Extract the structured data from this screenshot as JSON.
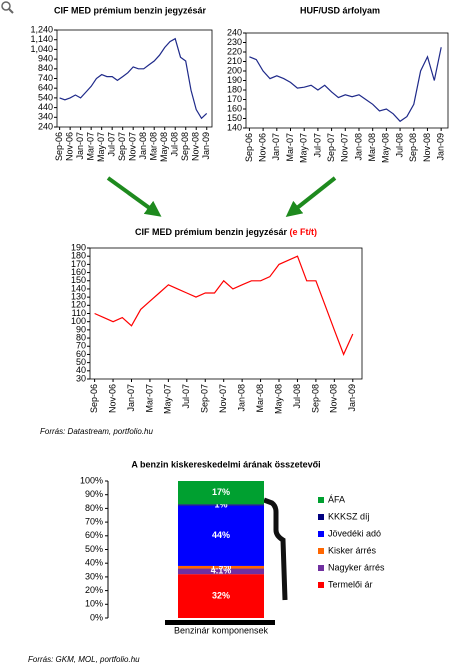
{
  "chart_data": [
    {
      "type": "line",
      "title": "CIF MED prémium benzin jegyzésár",
      "categories": [
        "Sep-06",
        null,
        "Nov-06",
        null,
        "Jan-07",
        null,
        "Mar-07",
        null,
        "May-07",
        null,
        "Jul-07",
        null,
        "Sep-07",
        null,
        "Nov-07",
        null,
        "Jan-08",
        null,
        "Mar-08",
        null,
        "May-08",
        null,
        "Jul-08",
        null,
        "Sep-08",
        null,
        "Nov-08",
        null,
        "Jan-09"
      ],
      "values": [
        540,
        520,
        540,
        570,
        540,
        600,
        660,
        740,
        780,
        760,
        760,
        720,
        760,
        800,
        860,
        840,
        840,
        880,
        920,
        980,
        1060,
        1120,
        1150,
        960,
        920,
        620,
        420,
        330,
        380
      ],
      "color": "#1f2a8a",
      "ylim": [
        240,
        1240
      ],
      "yticks": [
        240,
        340,
        440,
        540,
        640,
        740,
        840,
        940,
        {
          "value": 1040,
          "label": "1,040"
        },
        {
          "value": 1140,
          "label": "1,140"
        },
        {
          "value": 1240,
          "label": "1,240"
        }
      ]
    },
    {
      "type": "line",
      "title": "HUF/USD árfolyam",
      "categories": [
        "Sep-06",
        null,
        "Nov-06",
        null,
        "Jan-07",
        null,
        "Mar-07",
        null,
        "May-07",
        null,
        "Jul-07",
        null,
        "Sep-07",
        null,
        "Nov-07",
        null,
        "Jan-08",
        null,
        "Mar-08",
        null,
        "May-08",
        null,
        "Jul-08",
        null,
        "Sep-08",
        null,
        "Nov-08",
        null,
        "Jan-09"
      ],
      "values": [
        215,
        212,
        200,
        192,
        195,
        192,
        188,
        182,
        183,
        185,
        180,
        185,
        178,
        172,
        175,
        173,
        175,
        170,
        165,
        158,
        160,
        155,
        147,
        152,
        165,
        200,
        215,
        190,
        225
      ],
      "color": "#1f2a8a",
      "ylim": [
        140,
        240
      ],
      "yticks": [
        140,
        150,
        160,
        170,
        180,
        190,
        200,
        210,
        220,
        230,
        240
      ]
    },
    {
      "type": "line",
      "title": "CIF MED prémium benzin jegyzésár",
      "unit": "(e Ft/t)",
      "categories": [
        "Sep-06",
        null,
        "Nov-06",
        null,
        "Jan-07",
        null,
        "Mar-07",
        null,
        "May-07",
        null,
        "Jul-07",
        null,
        "Sep-07",
        null,
        "Nov-07",
        null,
        "Jan-08",
        null,
        "Mar-08",
        null,
        "May-08",
        null,
        "Jul-08",
        null,
        "Sep-08",
        null,
        "Nov-08",
        null,
        "Jan-09"
      ],
      "values": [
        110,
        105,
        100,
        105,
        95,
        115,
        125,
        135,
        145,
        140,
        135,
        130,
        135,
        135,
        150,
        140,
        145,
        150,
        150,
        155,
        170,
        175,
        180,
        150,
        150,
        120,
        90,
        60,
        85
      ],
      "color": "#ff0000",
      "ylim": [
        30,
        190
      ],
      "yticks": [
        30,
        40,
        50,
        60,
        70,
        80,
        90,
        100,
        110,
        120,
        130,
        140,
        150,
        160,
        170,
        180,
        190
      ]
    },
    {
      "type": "stacked-bar",
      "title": "A benzin kiskereskedelmi árának összetevői",
      "categories": [
        "Benzinár komponensek"
      ],
      "series": [
        {
          "name": "Termelői ár",
          "color": "#ff0000",
          "values": [
            32
          ],
          "value_labels": [
            "32%"
          ]
        },
        {
          "name": "Nagyker árrés",
          "color": "#7030a0",
          "values": [
            4.1
          ],
          "value_labels": [
            "4.1%"
          ]
        },
        {
          "name": "Kisker árrés",
          "color": "#ff6600",
          "values": [
            1.9
          ],
          "value_labels": [
            "1.9%"
          ]
        },
        {
          "name": "Jövedéki adó",
          "color": "#0000ff",
          "values": [
            44
          ],
          "value_labels": [
            "44%"
          ]
        },
        {
          "name": "KKKSZ díj",
          "color": "#000080",
          "values": [
            1
          ],
          "value_labels": [
            "1%"
          ]
        },
        {
          "name": "ÁFA",
          "color": "#00a030",
          "values": [
            17
          ],
          "value_labels": [
            "17%"
          ]
        }
      ],
      "ylim": [
        0,
        100
      ],
      "yticks": [
        {
          "value": 0,
          "label": "0%"
        },
        {
          "value": 10,
          "label": "10%"
        },
        {
          "value": 20,
          "label": "20%"
        },
        {
          "value": 30,
          "label": "30%"
        },
        {
          "value": 40,
          "label": "40%"
        },
        {
          "value": 50,
          "label": "50%"
        },
        {
          "value": 60,
          "label": "60%"
        },
        {
          "value": 70,
          "label": "70%"
        },
        {
          "value": 80,
          "label": "80%"
        },
        {
          "value": 90,
          "label": "90%"
        },
        {
          "value": 100,
          "label": "100%"
        }
      ]
    }
  ],
  "sources": [
    "Forrás: Datastream, portfolio.hu",
    "Forrás: GKM, MOL, portfolio.hu"
  ]
}
